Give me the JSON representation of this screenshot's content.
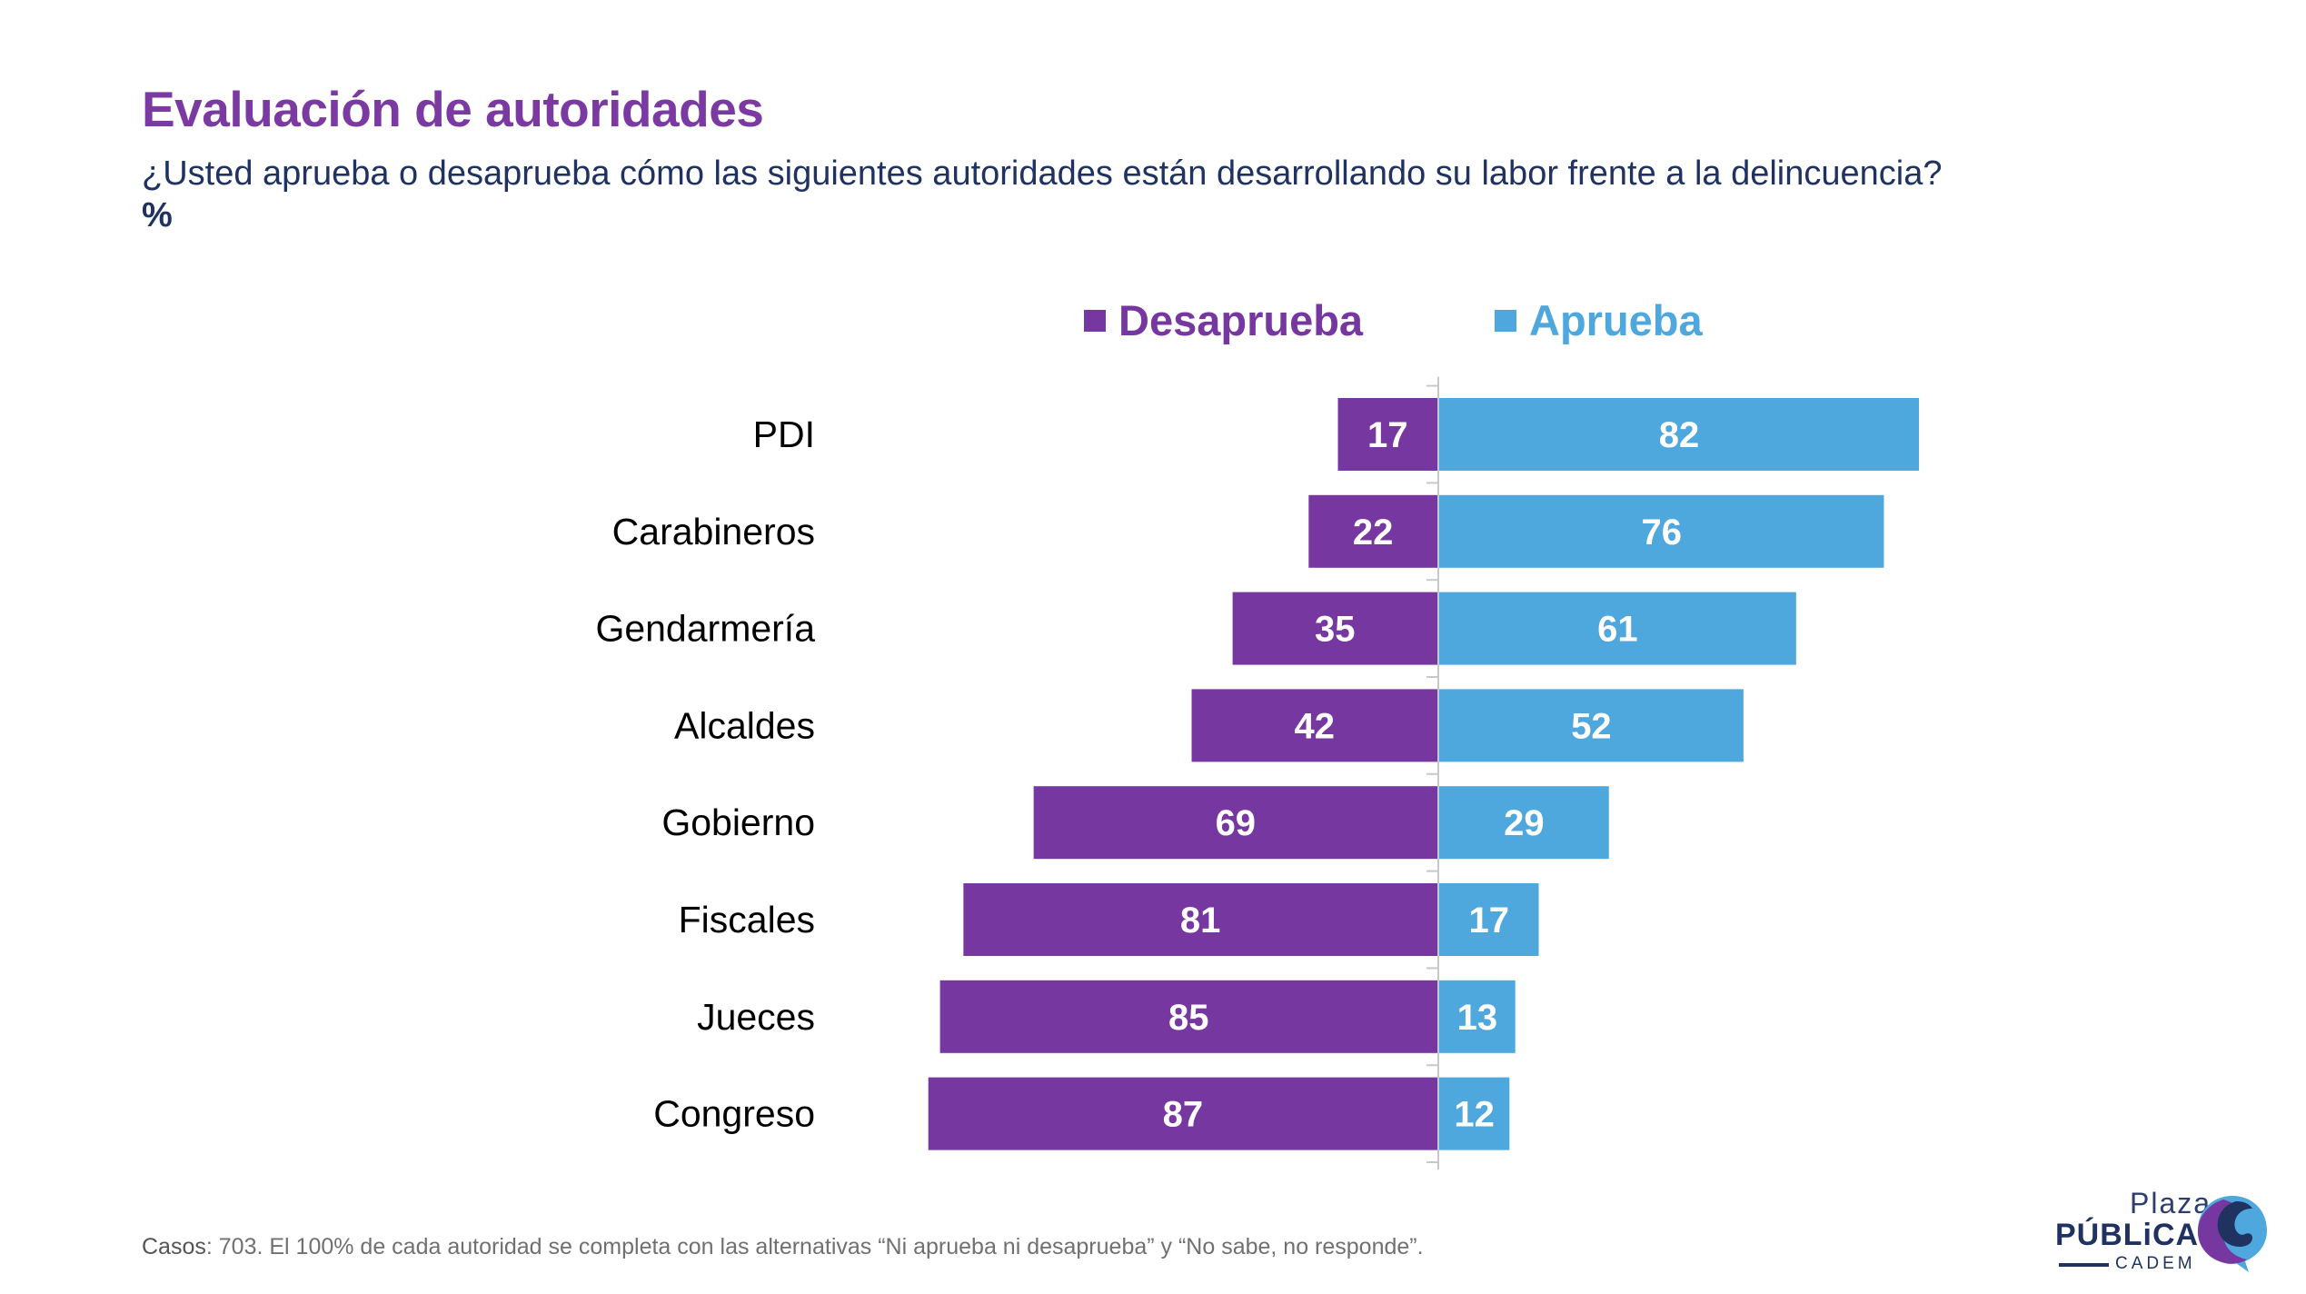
{
  "header": {
    "title": "Evaluación de autoridades",
    "subtitle": "¿Usted aprueba o desaprueba cómo las siguientes autoridades están desarrollando su labor frente a la delincuencia?",
    "subtitle_unit": "%"
  },
  "colors": {
    "title": "#7a3aa1",
    "subtitle": "#1f3260",
    "desaprueba": "#7737a0",
    "aprueba": "#4ea7dd",
    "axis": "#c8c8c8",
    "label": "#000000",
    "value_label": "#ffffff"
  },
  "chart_data": {
    "type": "bar",
    "orientation": "horizontal-diverging",
    "title": "Evaluación de autoridades",
    "xlabel": "",
    "ylabel": "",
    "unit": "%",
    "categories": [
      "PDI",
      "Carabineros",
      "Gendarmería",
      "Alcaldes",
      "Gobierno",
      "Fiscales",
      "Jueces",
      "Congreso"
    ],
    "series": [
      {
        "name": "Desaprueba",
        "direction": "left",
        "values": [
          17,
          22,
          35,
          42,
          69,
          81,
          85,
          87
        ]
      },
      {
        "name": "Aprueba",
        "direction": "right",
        "values": [
          82,
          76,
          61,
          52,
          29,
          17,
          13,
          12
        ]
      }
    ],
    "xlim": [
      -100,
      100
    ],
    "grid": false,
    "legend_position": "top-center",
    "data_labels": true
  },
  "legend": {
    "items": [
      {
        "label": "Desaprueba"
      },
      {
        "label": "Aprueba"
      }
    ]
  },
  "footer": {
    "cases_label": "Casos",
    "note": ": 703. El 100% de cada autoridad se completa con las alternativas “Ni aprueba ni desaprueba” y “No sabe, no responde”."
  },
  "logo": {
    "line1": "Plaza",
    "line2": "PÚBLiCA",
    "line3": "CADEM"
  }
}
